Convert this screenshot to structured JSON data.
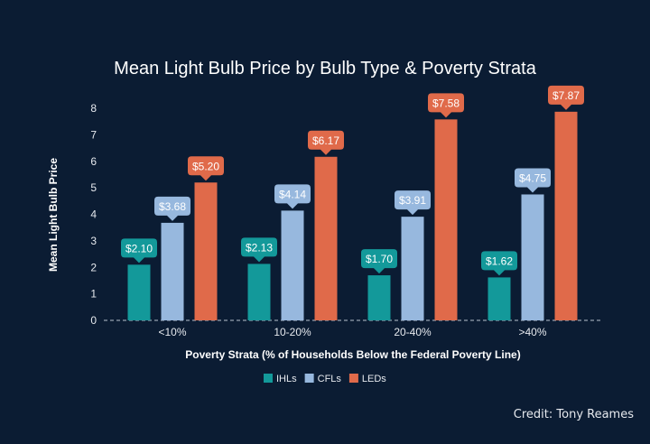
{
  "chart_data": {
    "type": "bar",
    "title": "Mean Light Bulb Price by Bulb Type & Poverty Strata",
    "xlabel": "Poverty Strata (% of Households Below the Federal Poverty Line)",
    "ylabel": "Mean Light Bulb Price",
    "ylim": [
      0,
      8
    ],
    "yticks": [
      "0",
      "1",
      "2",
      "3",
      "4",
      "5",
      "6",
      "7",
      "8"
    ],
    "grid": false,
    "legend_position": "bottom",
    "categories": [
      "<10%",
      "10-20%",
      "20-40%",
      ">40%"
    ],
    "series": [
      {
        "name": "IHLs",
        "color": "#13999a",
        "values": [
          2.1,
          2.13,
          1.7,
          1.62
        ],
        "labels": [
          "$2.10",
          "$2.13",
          "$1.70",
          "$1.62"
        ]
      },
      {
        "name": "CFLs",
        "color": "#97b8de",
        "values": [
          3.68,
          4.14,
          3.91,
          4.75
        ],
        "labels": [
          "$3.68",
          "$4.14",
          "$3.91",
          "$4.75"
        ]
      },
      {
        "name": "LEDs",
        "color": "#e06a4a",
        "values": [
          5.2,
          6.17,
          7.58,
          7.87
        ],
        "labels": [
          "$5.20",
          "$6.17",
          "$7.58",
          "$7.87"
        ]
      }
    ]
  },
  "credit": "Credit: Tony Reames"
}
